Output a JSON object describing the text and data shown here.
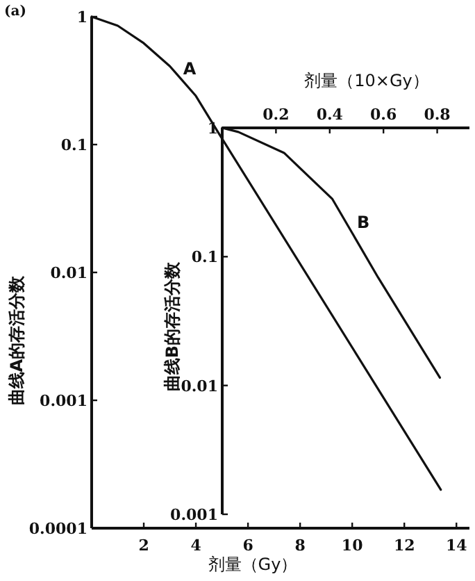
{
  "chart_data": [
    {
      "type": "line",
      "xlabel": "剂量（Gy）",
      "ylabel": "曲线A的存活分数",
      "annotations": [
        "(a)"
      ],
      "log": "y",
      "xlim": [
        0,
        14.5
      ],
      "ylim": [
        0.0001,
        1
      ],
      "xticks": [
        2,
        4,
        6,
        8,
        10,
        12,
        14
      ],
      "yticks": [
        1,
        0.1,
        0.01,
        0.001,
        0.0001
      ],
      "series": [
        {
          "name": "A",
          "color": "#111111",
          "x": [
            0,
            1,
            2,
            3,
            4,
            4.8,
            13.4
          ],
          "values": [
            1,
            0.85,
            0.62,
            0.41,
            0.24,
            0.13,
            0.0002
          ]
        }
      ]
    },
    {
      "type": "line",
      "xlabel": "剂量（10×Gy）",
      "ylabel": "曲线B的存活分数",
      "log": "y",
      "xlim": [
        0,
        0.92
      ],
      "ylim": [
        0.001,
        1
      ],
      "xticks": [
        0.2,
        0.4,
        0.6,
        0.8
      ],
      "yticks": [
        1,
        0.1,
        0.01,
        0.001
      ],
      "series": [
        {
          "name": "B",
          "color": "#111111",
          "x": [
            0,
            0.06,
            0.23,
            0.41,
            0.58,
            0.81
          ],
          "values": [
            1,
            0.93,
            0.64,
            0.28,
            0.069,
            0.0115
          ]
        }
      ]
    }
  ]
}
